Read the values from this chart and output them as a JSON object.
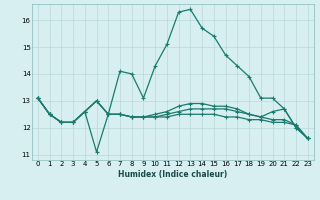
{
  "xlabel": "Humidex (Indice chaleur)",
  "ylabel": "",
  "xlim": [
    -0.5,
    23.5
  ],
  "ylim": [
    10.8,
    16.6
  ],
  "xticks": [
    0,
    1,
    2,
    3,
    4,
    5,
    6,
    7,
    8,
    9,
    10,
    11,
    12,
    13,
    14,
    15,
    16,
    17,
    18,
    19,
    20,
    21,
    22,
    23
  ],
  "yticks": [
    11,
    12,
    13,
    14,
    15,
    16
  ],
  "bg_color": "#d7eff0",
  "grid_color": "#b8d8da",
  "line_color": "#1a7a6e",
  "line_width": 0.9,
  "marker": "+",
  "marker_size": 3,
  "marker_edge_width": 0.8,
  "tick_fontsize": 5.0,
  "xlabel_fontsize": 5.5,
  "curves": [
    [
      13.1,
      12.5,
      12.2,
      12.2,
      12.6,
      11.1,
      12.5,
      14.1,
      14.0,
      13.1,
      14.3,
      15.1,
      16.3,
      16.4,
      15.7,
      15.4,
      14.7,
      14.3,
      13.9,
      13.1,
      13.1,
      12.7,
      12.0,
      11.6
    ],
    [
      13.1,
      12.5,
      12.2,
      12.2,
      12.6,
      13.0,
      12.5,
      12.5,
      12.4,
      12.4,
      12.4,
      12.5,
      12.6,
      12.7,
      12.7,
      12.7,
      12.7,
      12.6,
      12.5,
      12.4,
      12.3,
      12.3,
      12.1,
      11.6
    ],
    [
      13.1,
      12.5,
      12.2,
      12.2,
      12.6,
      13.0,
      12.5,
      12.5,
      12.4,
      12.4,
      12.4,
      12.4,
      12.5,
      12.5,
      12.5,
      12.5,
      12.4,
      12.4,
      12.3,
      12.3,
      12.2,
      12.2,
      12.1,
      11.6
    ],
    [
      13.1,
      12.5,
      12.2,
      12.2,
      12.6,
      13.0,
      12.5,
      12.5,
      12.4,
      12.4,
      12.5,
      12.6,
      12.8,
      12.9,
      12.9,
      12.8,
      12.8,
      12.7,
      12.5,
      12.4,
      12.6,
      12.7,
      12.0,
      11.6
    ]
  ]
}
